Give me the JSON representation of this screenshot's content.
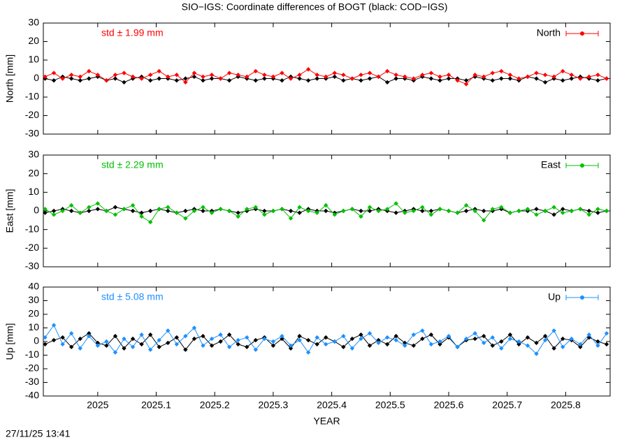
{
  "title": "SIO−IGS: Coordinate differences of BOGT (black: COD−IGS)",
  "footer": "27/11/25 13:41",
  "chart_data": [
    {
      "type": "line",
      "ylabel": "North [mm]",
      "annotation": "std ± 1.99 mm",
      "x": [
        2024.91,
        2024.925,
        2024.94,
        2024.955,
        2024.97,
        2024.985,
        2025,
        2025.015,
        2025.03,
        2025.045,
        2025.06,
        2025.075,
        2025.09,
        2025.105,
        2025.12,
        2025.135,
        2025.15,
        2025.165,
        2025.18,
        2025.195,
        2025.21,
        2025.225,
        2025.24,
        2025.255,
        2025.27,
        2025.285,
        2025.3,
        2025.315,
        2025.33,
        2025.345,
        2025.36,
        2025.375,
        2025.39,
        2025.405,
        2025.42,
        2025.435,
        2025.45,
        2025.465,
        2025.48,
        2025.495,
        2025.51,
        2025.525,
        2025.54,
        2025.555,
        2025.57,
        2025.585,
        2025.6,
        2025.615,
        2025.63,
        2025.645,
        2025.66,
        2025.675,
        2025.69,
        2025.705,
        2025.72,
        2025.735,
        2025.75,
        2025.765,
        2025.78,
        2025.795,
        2025.81,
        2025.825,
        2025.84,
        2025.855,
        2025.87
      ],
      "series": [
        {
          "color": "#000000",
          "values": [
            0,
            -1,
            1,
            0,
            -1,
            0,
            1,
            -1,
            0,
            -2,
            0,
            1,
            -1,
            0,
            0,
            -1,
            0,
            1,
            -1,
            0,
            0,
            -1,
            1,
            0,
            -1,
            0,
            0,
            -1,
            1,
            0,
            -1,
            0,
            0,
            1,
            -1,
            0,
            -1,
            0,
            1,
            -2,
            0,
            0,
            -1,
            1,
            0,
            -1,
            0,
            0,
            -1,
            1,
            0,
            -1,
            0,
            0,
            -1,
            1,
            0,
            -2,
            0,
            -1,
            0,
            1,
            0,
            -1,
            0
          ]
        },
        {
          "name": "North",
          "color": "#ff0000",
          "values": [
            1,
            3,
            0,
            2,
            1,
            4,
            2,
            -1,
            2,
            3,
            1,
            0,
            2,
            4,
            1,
            2,
            -2,
            3,
            1,
            2,
            0,
            3,
            2,
            1,
            4,
            2,
            1,
            3,
            0,
            2,
            5,
            2,
            1,
            3,
            2,
            0,
            2,
            3,
            1,
            4,
            2,
            1,
            0,
            2,
            3,
            1,
            2,
            -1,
            -3,
            2,
            1,
            3,
            4,
            2,
            0,
            1,
            3,
            2,
            1,
            4,
            2,
            0,
            1,
            2,
            0
          ]
        }
      ],
      "xlim": [
        2024.907,
        2025.876
      ],
      "xticks": [
        2025,
        2025.1,
        2025.2,
        2025.3,
        2025.4,
        2025.5,
        2025.6,
        2025.7,
        2025.8
      ],
      "ylim": [
        -30,
        30
      ],
      "yticks": [
        -30,
        -20,
        -10,
        0,
        10,
        20,
        30
      ]
    },
    {
      "type": "line",
      "ylabel": "East [mm]",
      "annotation": "std ± 2.29 mm",
      "x": [
        2024.91,
        2024.925,
        2024.94,
        2024.955,
        2024.97,
        2024.985,
        2025,
        2025.015,
        2025.03,
        2025.045,
        2025.06,
        2025.075,
        2025.09,
        2025.105,
        2025.12,
        2025.135,
        2025.15,
        2025.165,
        2025.18,
        2025.195,
        2025.21,
        2025.225,
        2025.24,
        2025.255,
        2025.27,
        2025.285,
        2025.3,
        2025.315,
        2025.33,
        2025.345,
        2025.36,
        2025.375,
        2025.39,
        2025.405,
        2025.42,
        2025.435,
        2025.45,
        2025.465,
        2025.48,
        2025.495,
        2025.51,
        2025.525,
        2025.54,
        2025.555,
        2025.57,
        2025.585,
        2025.6,
        2025.615,
        2025.63,
        2025.645,
        2025.66,
        2025.675,
        2025.69,
        2025.705,
        2025.72,
        2025.735,
        2025.75,
        2025.765,
        2025.78,
        2025.795,
        2025.81,
        2025.825,
        2025.84,
        2025.855,
        2025.87
      ],
      "series": [
        {
          "color": "#000000",
          "values": [
            -1,
            0,
            1,
            0,
            -1,
            0,
            1,
            0,
            2,
            1,
            0,
            -1,
            0,
            1,
            0,
            -1,
            0,
            1,
            0,
            0,
            1,
            0,
            -1,
            0,
            1,
            0,
            0,
            1,
            0,
            -1,
            1,
            0,
            0,
            -1,
            0,
            1,
            0,
            0,
            1,
            0,
            -1,
            0,
            1,
            0,
            0,
            1,
            0,
            -1,
            0,
            1,
            0,
            0,
            1,
            -1,
            0,
            0,
            1,
            0,
            -2,
            1,
            0,
            1,
            0,
            -1,
            0
          ]
        },
        {
          "name": "East",
          "color": "#00c000",
          "values": [
            1,
            -2,
            0,
            3,
            -1,
            2,
            4,
            0,
            -2,
            1,
            3,
            -3,
            -6,
            1,
            2,
            -1,
            -4,
            0,
            2,
            -1,
            1,
            0,
            -3,
            1,
            2,
            -2,
            0,
            1,
            -4,
            2,
            0,
            -1,
            3,
            -2,
            0,
            1,
            -3,
            2,
            0,
            1,
            4,
            -1,
            0,
            2,
            -2,
            1,
            0,
            -1,
            3,
            0,
            -5,
            1,
            2,
            -1,
            0,
            1,
            -2,
            0,
            2,
            -1,
            0,
            1,
            -2,
            1,
            0
          ]
        }
      ],
      "xlim": [
        2024.907,
        2025.876
      ],
      "xticks": [
        2025,
        2025.1,
        2025.2,
        2025.3,
        2025.4,
        2025.5,
        2025.6,
        2025.7,
        2025.8
      ],
      "ylim": [
        -30,
        30
      ],
      "yticks": [
        -30,
        -20,
        -10,
        0,
        10,
        20,
        30
      ]
    },
    {
      "type": "line",
      "ylabel": "Up [mm]",
      "annotation": "std ± 5.08 mm",
      "xlabel": "YEAR",
      "x": [
        2024.91,
        2024.925,
        2024.94,
        2024.955,
        2024.97,
        2024.985,
        2025,
        2025.015,
        2025.03,
        2025.045,
        2025.06,
        2025.075,
        2025.09,
        2025.105,
        2025.12,
        2025.135,
        2025.15,
        2025.165,
        2025.18,
        2025.195,
        2025.21,
        2025.225,
        2025.24,
        2025.255,
        2025.27,
        2025.285,
        2025.3,
        2025.315,
        2025.33,
        2025.345,
        2025.36,
        2025.375,
        2025.39,
        2025.405,
        2025.42,
        2025.435,
        2025.45,
        2025.465,
        2025.48,
        2025.495,
        2025.51,
        2025.525,
        2025.54,
        2025.555,
        2025.57,
        2025.585,
        2025.6,
        2025.615,
        2025.63,
        2025.645,
        2025.66,
        2025.675,
        2025.69,
        2025.705,
        2025.72,
        2025.735,
        2025.75,
        2025.765,
        2025.78,
        2025.795,
        2025.81,
        2025.825,
        2025.84,
        2025.855,
        2025.87
      ],
      "series": [
        {
          "color": "#000000",
          "values": [
            -2,
            1,
            3,
            -4,
            2,
            6,
            -1,
            -3,
            4,
            -5,
            2,
            -2,
            5,
            -4,
            -1,
            3,
            -6,
            2,
            4,
            -3,
            0,
            5,
            -2,
            -4,
            1,
            3,
            -3,
            2,
            -5,
            4,
            1,
            -2,
            3,
            0,
            -4,
            2,
            5,
            -3,
            1,
            -2,
            4,
            -1,
            -3,
            2,
            5,
            -2,
            3,
            -4,
            1,
            2,
            4,
            -3,
            0,
            5,
            -2,
            3,
            -1,
            4,
            -5,
            2,
            1,
            -4,
            3,
            0,
            -2
          ]
        },
        {
          "name": "Up",
          "color": "#1e90ff",
          "values": [
            3,
            12,
            -2,
            6,
            -5,
            4,
            -3,
            0,
            -8,
            2,
            -4,
            5,
            -6,
            1,
            8,
            -2,
            4,
            10,
            -3,
            2,
            5,
            -4,
            1,
            3,
            -6,
            2,
            0,
            4,
            -3,
            1,
            -8,
            3,
            -2,
            0,
            4,
            -5,
            2,
            6,
            -1,
            3,
            1,
            -3,
            5,
            8,
            -2,
            0,
            4,
            -4,
            2,
            6,
            -1,
            3,
            -5,
            2,
            0,
            -3,
            -9,
            1,
            8,
            -4,
            2,
            -2,
            5,
            -3,
            6
          ]
        }
      ],
      "xlim": [
        2024.907,
        2025.876
      ],
      "xticks": [
        2025,
        2025.1,
        2025.2,
        2025.3,
        2025.4,
        2025.5,
        2025.6,
        2025.7,
        2025.8
      ],
      "ylim": [
        -40,
        40
      ],
      "yticks": [
        -40,
        -30,
        -20,
        -10,
        0,
        10,
        20,
        30,
        40
      ]
    }
  ]
}
